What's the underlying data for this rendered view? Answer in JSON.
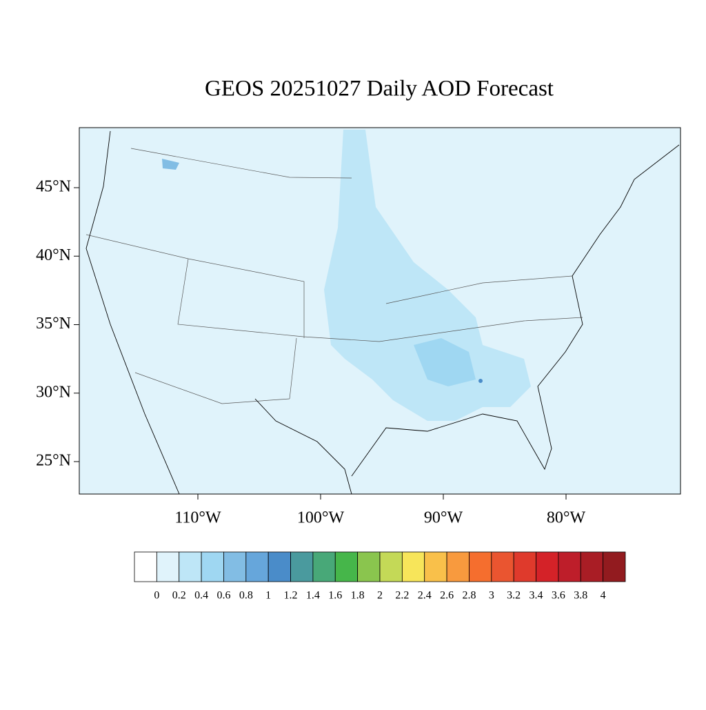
{
  "title": "GEOS 20251027 Daily AOD Forecast",
  "map": {
    "lat_ticks": [
      {
        "value": 45,
        "label": "45°N"
      },
      {
        "value": 40,
        "label": "40°N"
      },
      {
        "value": 35,
        "label": "35°N"
      },
      {
        "value": 30,
        "label": "30°N"
      },
      {
        "value": 25,
        "label": "25°N"
      }
    ],
    "lon_ticks": [
      {
        "value": -110,
        "label": "110°W"
      },
      {
        "value": -100,
        "label": "100°W"
      },
      {
        "value": -90,
        "label": "90°W"
      },
      {
        "value": -80,
        "label": "80°W"
      }
    ]
  },
  "colorbar": {
    "levels": [
      0,
      0.2,
      0.4,
      0.6,
      0.8,
      1,
      1.2,
      1.4,
      1.6,
      1.8,
      2,
      2.2,
      2.4,
      2.6,
      2.8,
      3,
      3.2,
      3.4,
      3.6,
      3.8,
      4
    ],
    "colors": [
      "#ffffff",
      "#e0f3fb",
      "#bee6f7",
      "#9fd7f2",
      "#82bde4",
      "#66a6db",
      "#4a8cc9",
      "#4a9a9e",
      "#48a878",
      "#46b64a",
      "#8ac54e",
      "#c4d957",
      "#f7e55a",
      "#f9c04a",
      "#f89a3e",
      "#f56e2e",
      "#ea5530",
      "#df3a2c",
      "#d42228",
      "#be1e2a",
      "#a91d25",
      "#921b1f"
    ]
  }
}
